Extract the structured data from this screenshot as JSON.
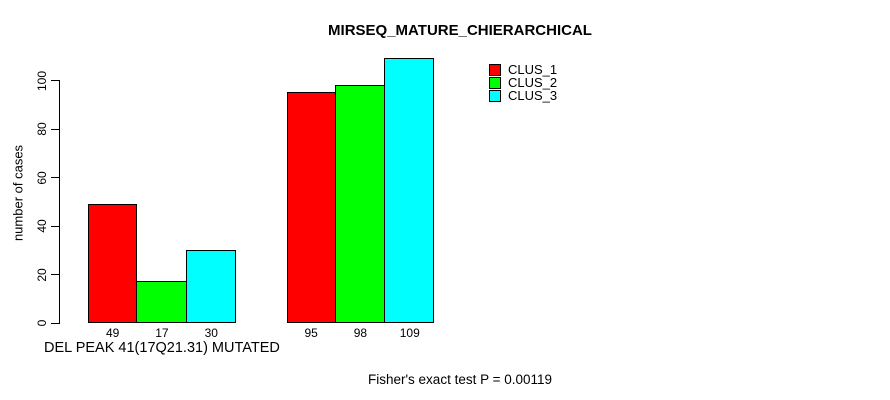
{
  "chart_data": {
    "type": "bar",
    "title": "MIRSEQ_MATURE_CHIERARCHICAL",
    "ylabel": "number of cases",
    "ylim": [
      0,
      110
    ],
    "yticks": [
      0,
      20,
      40,
      60,
      80,
      100
    ],
    "grid": false,
    "legend_position": "top-right",
    "group_labels": [
      "DEL PEAK 41(17Q21.31) MUTATED",
      ""
    ],
    "series": [
      {
        "name": "CLUS_1",
        "color": "#ff0000",
        "values": [
          49,
          95
        ]
      },
      {
        "name": "CLUS_2",
        "color": "#00ff00",
        "values": [
          17,
          98
        ]
      },
      {
        "name": "CLUS_3",
        "color": "#00ffff",
        "values": [
          30,
          109
        ]
      }
    ],
    "bar_value_labels": [
      [
        "49",
        "17",
        "30"
      ],
      [
        "95",
        "98",
        "109"
      ]
    ],
    "annotation": "Fisher's exact test P = 0.00119"
  }
}
